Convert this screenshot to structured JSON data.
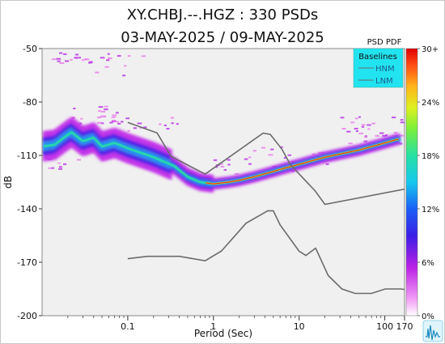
{
  "title_line1": "XY.CHBJ.--.HGZ : 330 PSDs",
  "title_line2": "03-MAY-2025 / 09-MAY-2025",
  "colors": {
    "plot_bg": "#f0f0f0",
    "baseline_line": "#6b6b6b",
    "legend_bg": "#22e3f0",
    "legend_text": "#1a5e8c"
  },
  "chart_data": {
    "type": "heatmap",
    "title": "XY.CHBJ.--.HGZ : 330 PSDs",
    "subtitle": "03-MAY-2025 / 09-MAY-2025",
    "xlabel": "Period (Sec)",
    "ylabel": "dB",
    "x_scale": "log",
    "xlim": [
      0.01,
      170
    ],
    "ylim": [
      -200,
      -50
    ],
    "x_ticks": [
      {
        "value": 0.1,
        "label": "0.1"
      },
      {
        "value": 1,
        "label": "1"
      },
      {
        "value": 10,
        "label": "10"
      },
      {
        "value": 100,
        "label": "100"
      },
      {
        "value": 170,
        "label": "170"
      }
    ],
    "y_ticks": [
      {
        "value": -50,
        "label": "-50"
      },
      {
        "value": -80,
        "label": "-80"
      },
      {
        "value": -110,
        "label": "-110"
      },
      {
        "value": -140,
        "label": "-140"
      },
      {
        "value": -170,
        "label": "-170"
      },
      {
        "value": -200,
        "label": "-200"
      }
    ],
    "colorbar": {
      "label": "PSD PDF",
      "range": [
        0,
        30
      ],
      "tick_labels": [
        "0%",
        "6%",
        "12%",
        "18%",
        "24%",
        "30+"
      ]
    },
    "legend": {
      "title": "Baselines",
      "entries": [
        "HNM",
        "LNM"
      ],
      "position": "top-right"
    },
    "baselines": [
      {
        "name": "HNM",
        "points": [
          [
            0.1,
            -91.5
          ],
          [
            0.22,
            -97.4
          ],
          [
            0.32,
            -110.5
          ],
          [
            0.8,
            -120.5
          ],
          [
            3.8,
            -97.5
          ],
          [
            4.6,
            -98.2
          ],
          [
            6.3,
            -106.5
          ],
          [
            7.9,
            -115.2
          ],
          [
            15.4,
            -130
          ],
          [
            20,
            -137.5
          ],
          [
            354.8,
            -126
          ]
        ]
      },
      {
        "name": "LNM",
        "points": [
          [
            0.1,
            -168.0
          ],
          [
            0.17,
            -166.7
          ],
          [
            0.4,
            -166.7
          ],
          [
            0.8,
            -169.2
          ],
          [
            1.24,
            -163.7
          ],
          [
            2.4,
            -148.1
          ],
          [
            4.3,
            -141.1
          ],
          [
            5,
            -141.1
          ],
          [
            6,
            -149
          ],
          [
            10,
            -163.8
          ],
          [
            12,
            -166.2
          ],
          [
            15.6,
            -162.1
          ],
          [
            21.9,
            -177.5
          ],
          [
            31.6,
            -185
          ],
          [
            45,
            -187.5
          ],
          [
            70,
            -187.5
          ],
          [
            101,
            -185
          ],
          [
            154,
            -185
          ],
          [
            328,
            -187.5
          ]
        ]
      }
    ],
    "pdf_series": [
      {
        "name": "mode",
        "points": [
          [
            0.01,
            -105
          ],
          [
            0.014,
            -104
          ],
          [
            0.018,
            -100
          ],
          [
            0.022,
            -97
          ],
          [
            0.03,
            -102
          ],
          [
            0.04,
            -100
          ],
          [
            0.05,
            -105
          ],
          [
            0.07,
            -103
          ],
          [
            0.1,
            -106
          ],
          [
            0.2,
            -111
          ],
          [
            0.35,
            -116
          ],
          [
            0.5,
            -122
          ],
          [
            0.7,
            -125
          ],
          [
            1,
            -126
          ],
          [
            1.5,
            -125
          ],
          [
            2,
            -124
          ],
          [
            3,
            -122
          ],
          [
            5,
            -119
          ],
          [
            7,
            -117
          ],
          [
            10,
            -115
          ],
          [
            20,
            -111
          ],
          [
            50,
            -107
          ],
          [
            100,
            -103
          ],
          [
            140,
            -101
          ]
        ]
      }
    ]
  }
}
